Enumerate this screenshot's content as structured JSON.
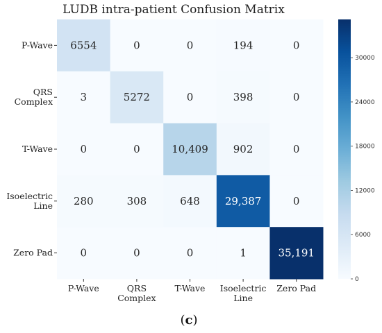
{
  "chart_data": {
    "type": "heatmap",
    "title": "LUDB intra-patient Confusion Matrix",
    "row_labels": [
      [
        "P-Wave"
      ],
      [
        "QRS",
        "Complex"
      ],
      [
        "T-Wave"
      ],
      [
        "Isoelectric",
        "Line"
      ],
      [
        "Zero Pad"
      ]
    ],
    "col_labels": [
      [
        "P-Wave"
      ],
      [
        "QRS",
        "Complex"
      ],
      [
        "T-Wave"
      ],
      [
        "Isoelectric",
        "Line"
      ],
      [
        "Zero Pad"
      ]
    ],
    "values": [
      [
        6554,
        0,
        0,
        194,
        0
      ],
      [
        3,
        5272,
        0,
        398,
        0
      ],
      [
        0,
        0,
        10409,
        902,
        0
      ],
      [
        280,
        308,
        648,
        29387,
        0
      ],
      [
        0,
        0,
        0,
        1,
        35191
      ]
    ],
    "cell_labels": [
      [
        "6554",
        "0",
        "0",
        "194",
        "0"
      ],
      [
        "3",
        "5272",
        "0",
        "398",
        "0"
      ],
      [
        "0",
        "0",
        "10,409",
        "902",
        "0"
      ],
      [
        "280",
        "308",
        "648",
        "29,387",
        "0"
      ],
      [
        "0",
        "0",
        "0",
        "1",
        "35,191"
      ]
    ],
    "colorbar": {
      "min": 0,
      "max": 35191,
      "ticks": [
        0,
        6000,
        12000,
        18000,
        24000,
        30000
      ],
      "colormap": "Blues"
    },
    "colors": {
      "low": "#f7fbff",
      "high": "#08306b"
    }
  },
  "panel_label": {
    "open": "(",
    "letter": "c",
    "close": ")"
  }
}
